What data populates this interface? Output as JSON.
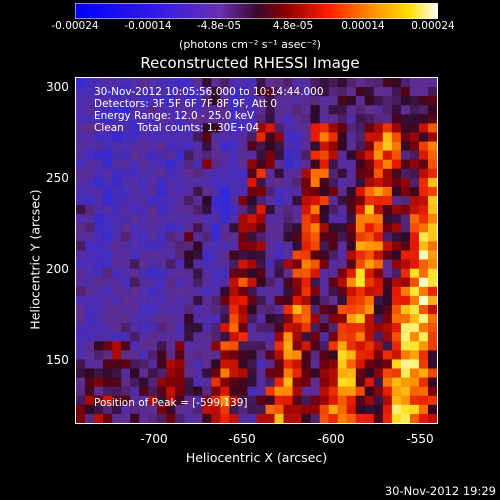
{
  "colorbar": {
    "ticks": [
      "-0.00024",
      "-0.00014",
      "-4.8e-05",
      "4.8e-05",
      "0.00014",
      "0.00024"
    ],
    "units": "(photons cm⁻² s⁻¹ asec⁻²)"
  },
  "title": "Reconstructed RHESSI Image",
  "info": {
    "time": "30-Nov-2012 10:05:56.000 to 10:14:44.000",
    "detectors": "Detectors: 3F 5F 6F 7F 8F 9F, Att 0",
    "energy": "Energy Range: 12.0 - 25.0 keV",
    "clean": "Clean    Total counts: 1.30E+04",
    "peak": "Position of Peak = [-599,139]"
  },
  "axes": {
    "ylabel": "Heliocentric Y (arcsec)",
    "xlabel": "Heliocentric X (arcsec)",
    "yticks": [
      "300",
      "250",
      "200",
      "150"
    ],
    "xticks": [
      "-700",
      "-650",
      "-600",
      "-550"
    ]
  },
  "footer": "30-Nov-2012 19:29"
}
